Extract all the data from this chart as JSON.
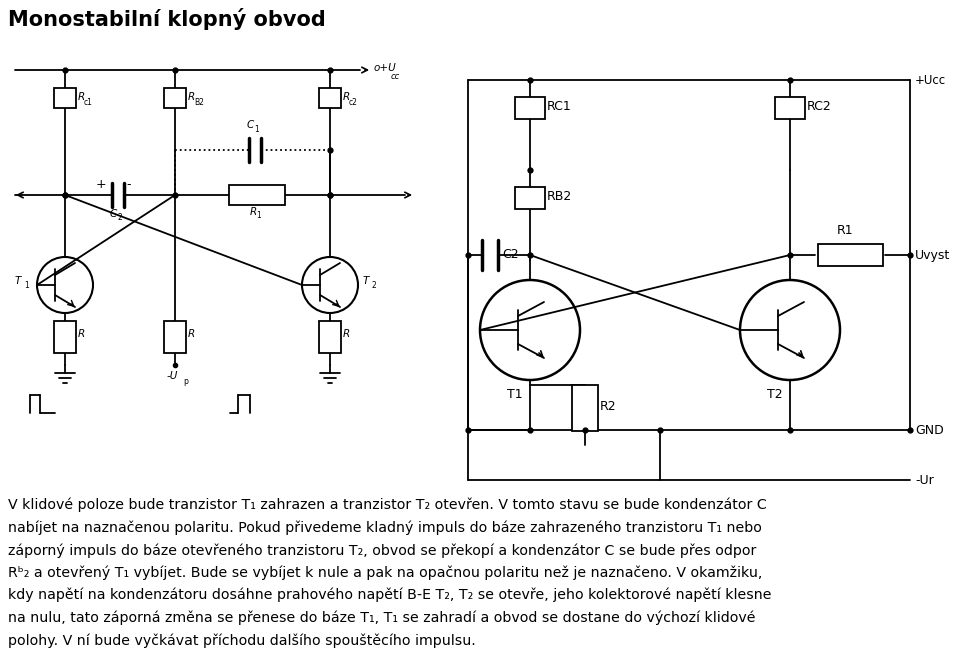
{
  "title": "Monostabilní klopný obvod",
  "title_fontsize": 15,
  "background_color": "#ffffff",
  "text_color": "#000000",
  "text_lines": [
    "V klidové poloze bude tranzistor T₁ zahrazen a tranzistor T₂ otevřen. V tomto stavu se bude kondenzátor C",
    "nabíjet na naznačenou polaritu. Pokud přivedeme kladný impuls do báze zahrazeného tranzistoru T₁ nebo",
    "záporný impuls do báze otevřeného tranzistoru T₂, obvod se překopí a kondenzátor C se bude přes odpor",
    "Rᵇ₂ a otevřený T₁ vybíjet. Bude se vybíjet k nule a pak na opačnou polaritu než je naznačeno. V okamžiku,",
    "kdy napětí na kondenzátoru dosáhne prahového napětí B-E T₂, T₂ se otevře, jeho kolektorové napětí klesne",
    "na nulu, tato záporná změna se přenese do báze T₁, T₁ se zahradí a obvod se dostane do výchozí klidové",
    "polohy. V ní bude vyčkávat příchodu dalšího spouštěcího impulsu."
  ]
}
